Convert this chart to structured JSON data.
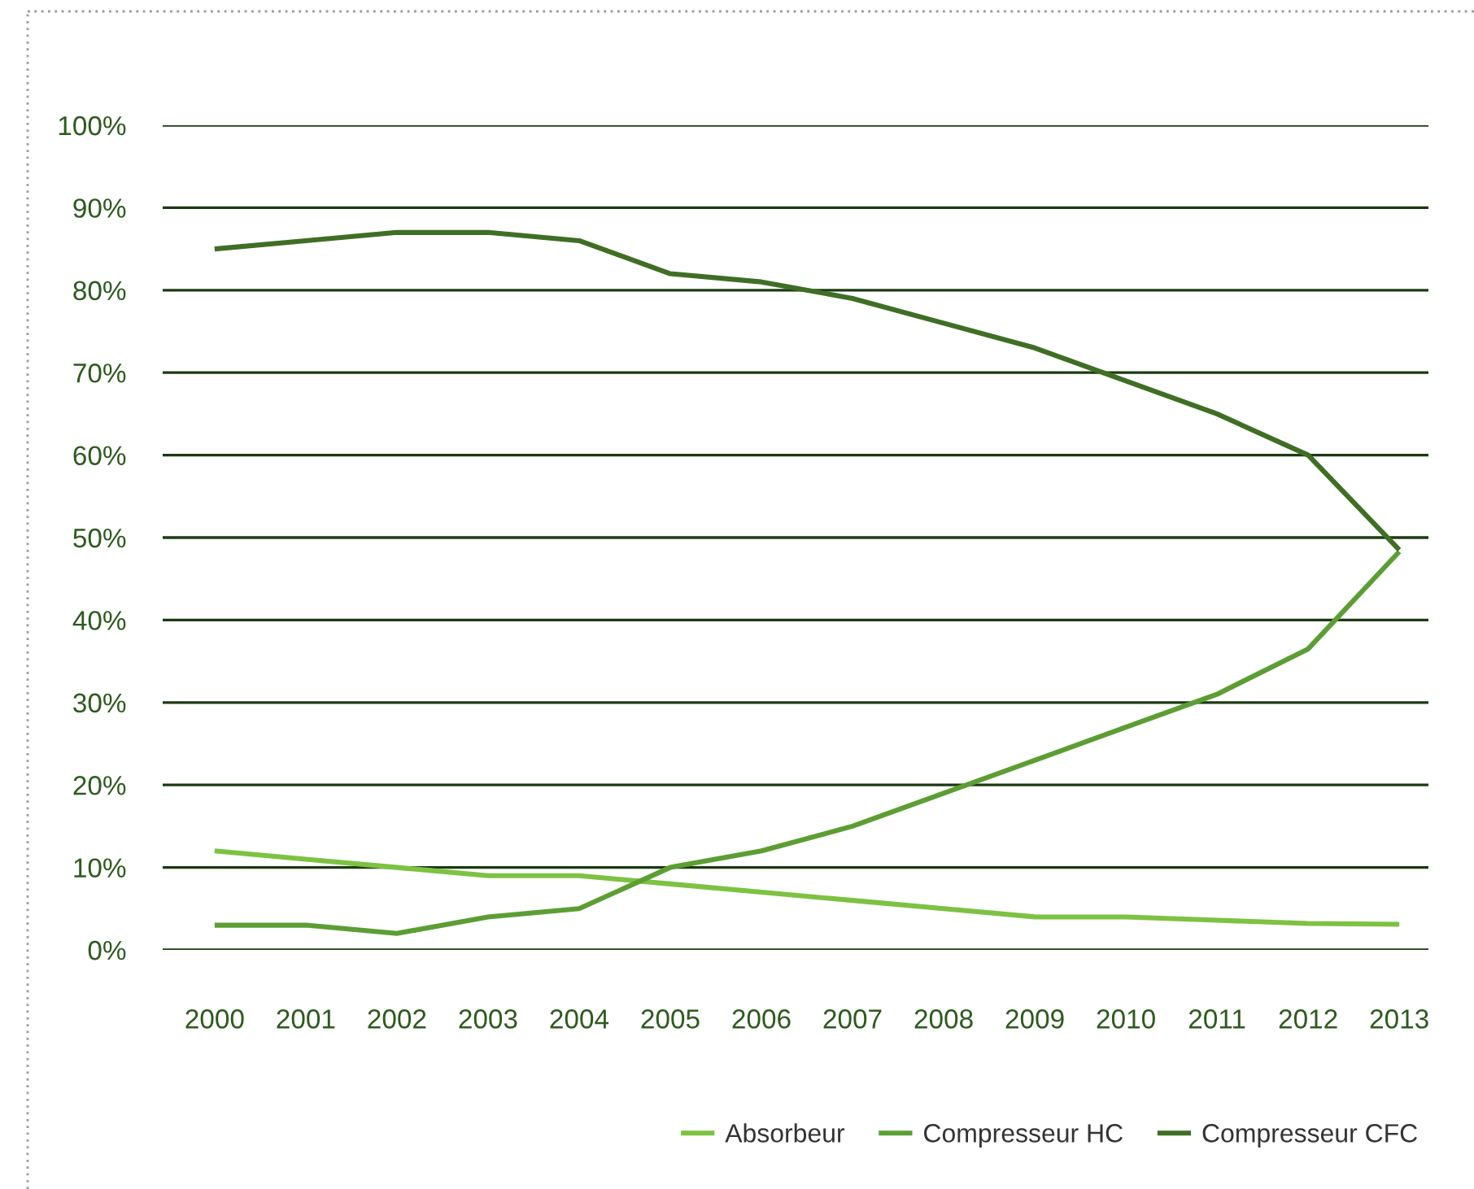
{
  "chart_data": {
    "type": "line",
    "categories": [
      "2000",
      "2001",
      "2002",
      "2003",
      "2004",
      "2005",
      "2006",
      "2007",
      "2008",
      "2009",
      "2010",
      "2011",
      "2012",
      "2013"
    ],
    "series": [
      {
        "name": "Absorbeur",
        "color": "#7dc242",
        "values": [
          12,
          11,
          10,
          9,
          9,
          8,
          7,
          6,
          5,
          4,
          4,
          3.6,
          3.2,
          3.1
        ]
      },
      {
        "name": "Compresseur HC",
        "color": "#5c9e34",
        "values": [
          3,
          3,
          2,
          4,
          5,
          10,
          12,
          15,
          19,
          23,
          27,
          31,
          36.5,
          48.3
        ]
      },
      {
        "name": "Compresseur CFC",
        "color": "#3f6e25",
        "values": [
          85,
          86,
          87,
          87,
          86,
          82,
          81,
          79,
          76,
          73,
          69,
          65,
          60,
          48.5
        ]
      }
    ],
    "ylim": [
      0,
      100
    ],
    "yticks": [
      {
        "value": 0,
        "label": "0%"
      },
      {
        "value": 10,
        "label": "10%"
      },
      {
        "value": 20,
        "label": "20%"
      },
      {
        "value": 30,
        "label": "30%"
      },
      {
        "value": 40,
        "label": "40%"
      },
      {
        "value": 50,
        "label": "50%"
      },
      {
        "value": 60,
        "label": "60%"
      },
      {
        "value": 70,
        "label": "70%"
      },
      {
        "value": 80,
        "label": "80%"
      },
      {
        "value": 90,
        "label": "90%"
      },
      {
        "value": 100,
        "label": "100%"
      }
    ],
    "grid": "y",
    "legend": "bottom right",
    "marker": "none",
    "line_style": "solid"
  }
}
